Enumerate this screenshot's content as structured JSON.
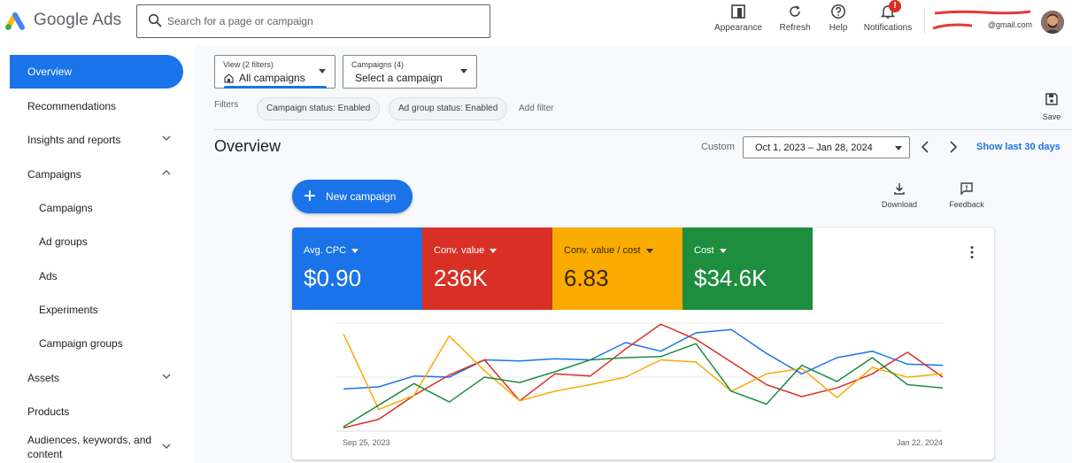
{
  "header": {
    "brand": "Google Ads",
    "search": {
      "placeholder": "Search for a page or campaign"
    },
    "buttons": [
      {
        "label": "Appearance",
        "icon": "appearance-icon"
      },
      {
        "label": "Refresh",
        "icon": "refresh-icon"
      },
      {
        "label": "Help",
        "icon": "help-icon"
      },
      {
        "label": "Notifications",
        "icon": "bell-icon",
        "badge": "!"
      }
    ],
    "account": {
      "email": "@gmail.com"
    }
  },
  "sidebar": {
    "items": [
      {
        "label": "Overview",
        "active": true
      },
      {
        "label": "Recommendations"
      },
      {
        "label": "Insights and reports",
        "chevron": "down"
      },
      {
        "label": "Campaigns",
        "chevron": "up"
      },
      {
        "label": "Campaigns",
        "sub": true
      },
      {
        "label": "Ad groups",
        "sub": true
      },
      {
        "label": "Ads",
        "sub": true
      },
      {
        "label": "Experiments",
        "sub": true
      },
      {
        "label": "Campaign groups",
        "sub": true
      },
      {
        "label": "Assets",
        "chevron": "down"
      },
      {
        "label": "Products"
      },
      {
        "label_line1": "Audiences, keywords, and",
        "label_line2": "content",
        "chevron": "down"
      }
    ]
  },
  "view_selector": {
    "caption": "View (2 filters)",
    "value": "All campaigns"
  },
  "campaign_selector": {
    "caption": "Campaigns (4)",
    "value": "Select a campaign"
  },
  "filters": {
    "label": "Filters",
    "chips": [
      "Campaign status: Enabled",
      "Ad group status: Enabled"
    ],
    "add_label": "Add filter"
  },
  "save_label": "Save",
  "page_title": "Overview",
  "date": {
    "custom_label": "Custom",
    "range": "Oct 1, 2023 – Jan 28, 2024",
    "show_last": "Show last 30 days"
  },
  "actions": {
    "new_campaign": "New campaign",
    "download": "Download",
    "feedback": "Feedback"
  },
  "metrics": [
    {
      "name": "Avg. CPC",
      "value": "$0.90",
      "color": "#1a73e8"
    },
    {
      "name": "Conv. value",
      "value": "236K",
      "color": "#d93025"
    },
    {
      "name": "Conv. value / cost",
      "value": "6.83",
      "color": "#f9ab00"
    },
    {
      "name": "Cost",
      "value": "$34.6K",
      "color": "#1e8e3e"
    }
  ],
  "chart_data": {
    "type": "line",
    "x_start_label": "Sep 25, 2023",
    "x_end_label": "Jan 22, 2024",
    "x": [
      "Sep 25, 2023",
      "Oct 2, 2023",
      "Oct 9, 2023",
      "Oct 16, 2023",
      "Oct 23, 2023",
      "Oct 30, 2023",
      "Nov 6, 2023",
      "Nov 13, 2023",
      "Nov 20, 2023",
      "Nov 27, 2023",
      "Dec 4, 2023",
      "Dec 11, 2023",
      "Dec 18, 2023",
      "Dec 25, 2023",
      "Jan 1, 2024",
      "Jan 8, 2024",
      "Jan 15, 2024",
      "Jan 22, 2024"
    ],
    "y_scale": "relative (0 = bottom, 1 = top of plot)",
    "series": [
      {
        "metric": "Avg. CPC",
        "color": "#1a73e8",
        "values": [
          0.39,
          0.41,
          0.51,
          0.5,
          0.66,
          0.65,
          0.67,
          0.66,
          0.82,
          0.74,
          0.91,
          0.94,
          0.72,
          0.53,
          0.68,
          0.74,
          0.62,
          0.61
        ]
      },
      {
        "metric": "Conv. value",
        "color": "#d93025",
        "values": [
          0.03,
          0.11,
          0.33,
          0.52,
          0.66,
          0.28,
          0.53,
          0.51,
          0.76,
          0.99,
          0.85,
          0.64,
          0.43,
          0.32,
          0.4,
          0.53,
          0.73,
          0.5
        ]
      },
      {
        "metric": "Conv. value / cost",
        "color": "#f9ab00",
        "values": [
          0.9,
          0.2,
          0.33,
          0.88,
          0.56,
          0.28,
          0.37,
          0.43,
          0.5,
          0.66,
          0.64,
          0.37,
          0.53,
          0.58,
          0.31,
          0.59,
          0.5,
          0.53
        ]
      },
      {
        "metric": "Cost",
        "color": "#1e8e3e",
        "values": [
          0.04,
          0.24,
          0.44,
          0.27,
          0.5,
          0.45,
          0.55,
          0.66,
          0.68,
          0.69,
          0.81,
          0.37,
          0.25,
          0.61,
          0.46,
          0.68,
          0.43,
          0.4
        ]
      }
    ]
  }
}
